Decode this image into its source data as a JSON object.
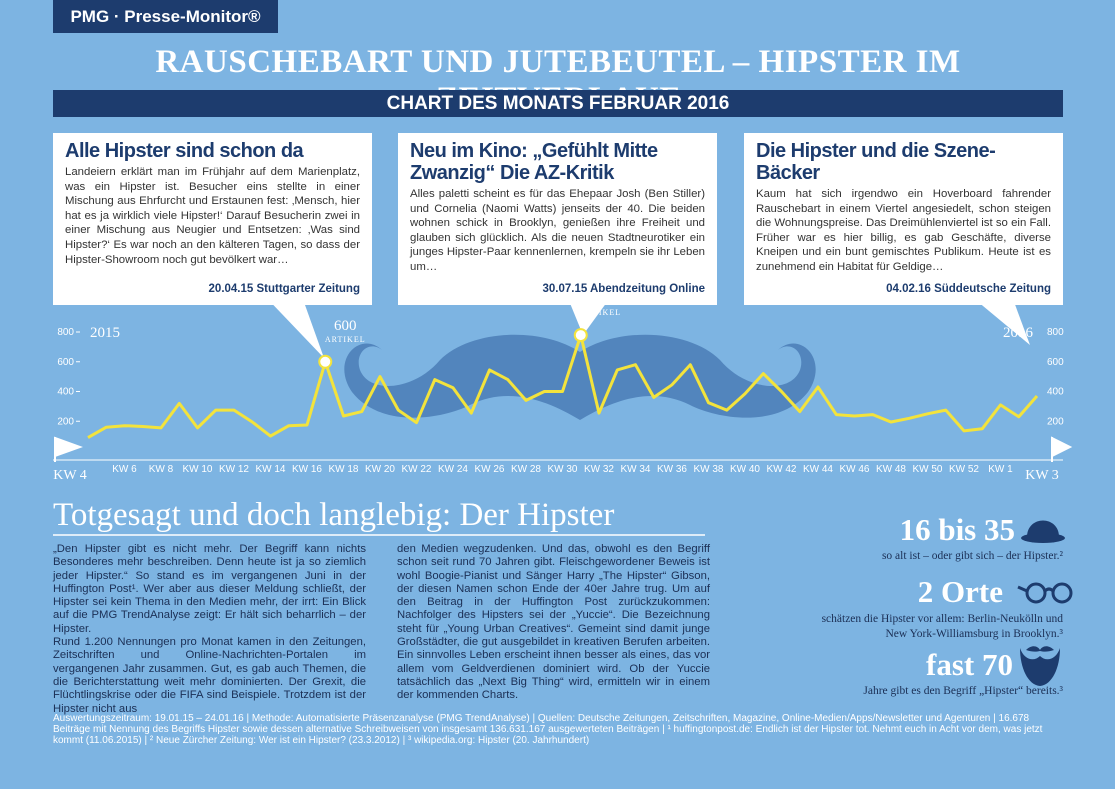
{
  "header": {
    "logo": "PMG · Presse-Monitor®",
    "title": "RAUSCHEBART UND JUTEBEUTEL – HIPSTER IM ZEITVERLAUF",
    "subtitle": "CHART DES MONATS FEBRUAR 2016"
  },
  "callouts": [
    {
      "title": "Alle Hipster sind schon da",
      "text": "Landeiern erklärt man im Frühjahr auf dem Marienplatz, was ein Hipster ist. Besucher eins stellte in einer Mischung aus Ehrfurcht und Erstaunen fest: ‚Mensch, hier hat es ja wirklich viele Hipster!‘ Darauf Besucherin zwei in einer Mischung aus Neugier und Entsetzen: ‚Was sind Hipster?‘ Es war noch an den kälteren Tagen, so dass der Hipster-Showroom noch gut bevölkert war…",
      "source": "20.04.15 Stuttgarter Zeitung"
    },
    {
      "title": "Neu im Kino: „Gefühlt Mitte Zwanzig“ Die AZ-Kritik",
      "text": "Alles paletti scheint es für das Ehepaar Josh (Ben Stiller) und Cornelia (Naomi Watts) jenseits der 40. Die beiden wohnen schick in Brooklyn, genießen ihre Freiheit und glauben sich glücklich. Als die neuen Stadtneurotiker ein junges Hipster-Paar kennenlernen, krempeln sie ihr Leben um…",
      "source": "30.07.15 Abendzeitung Online"
    },
    {
      "title": "Die Hipster und die Szene-Bäcker",
      "text": "Kaum hat sich irgendwo ein Hoverboard fahrender Rauschebart in einem Viertel angesiedelt, schon steigen die Wohnungspreise. Das Dreimühlenviertel ist so ein Fall. Früher war es hier billig, es gab Geschäfte, diverse Kneipen und ein bunt gemischtes Publikum. Heute ist es zunehmend ein Habitat für Geldige…",
      "source": "04.02.16 Süddeutsche Zeitung"
    }
  ],
  "chart_data": {
    "type": "line",
    "start_label": "2015",
    "end_label": "2016",
    "data_label_unit": "ARTIKEL",
    "categories": [
      "KW 4",
      null,
      "KW 6",
      null,
      "KW 8",
      null,
      "KW 10",
      null,
      "KW 12",
      null,
      "KW 14",
      null,
      "KW 16",
      null,
      "KW 18",
      null,
      "KW 20",
      null,
      "KW 22",
      null,
      "KW 24",
      null,
      "KW 26",
      null,
      "KW 28",
      null,
      "KW 30",
      null,
      "KW 32",
      null,
      "KW 34",
      null,
      "KW 36",
      null,
      "KW 38",
      null,
      "KW 40",
      null,
      "KW 42",
      null,
      "KW 44",
      null,
      "KW 46",
      null,
      "KW 48",
      null,
      "KW 50",
      null,
      "KW 52",
      null,
      "KW 1",
      null,
      "KW 3"
    ],
    "series": [
      {
        "color": "#f3e33c",
        "values": [
          90,
          160,
          170,
          165,
          155,
          320,
          155,
          275,
          275,
          195,
          100,
          170,
          175,
          600,
          235,
          265,
          500,
          275,
          190,
          480,
          425,
          255,
          545,
          480,
          340,
          400,
          400,
          779,
          255,
          545,
          580,
          360,
          445,
          580,
          325,
          275,
          385,
          520,
          400,
          265,
          430,
          245,
          235,
          245,
          195,
          220,
          250,
          275,
          135,
          150,
          310,
          230,
          370
        ]
      }
    ],
    "ylim": [
      0,
      800
    ],
    "yticks": [
      200,
      400,
      600,
      800
    ]
  },
  "article": {
    "title": "Totgesagt und doch langlebig: Der Hipster",
    "columns": [
      [
        "„Den Hipster gibt es nicht mehr. Der Begriff kann nichts Besonderes mehr beschreiben. Denn heute ist ja so ziemlich jeder Hipster.“ So stand es im vergangenen Juni in der Huffington Post¹. Wer aber aus dieser Meldung schließt, der Hipster sei kein Thema in den Medien mehr, der irrt: Ein Blick auf die PMG TrendAnalyse zeigt: Er hält sich beharrlich – der Hipster.",
        "Rund 1.200 Nennungen pro Monat kamen in den Zeitungen, Zeitschriften und Online-Nachrichten-Portalen im vergangenen Jahr zusammen. Gut, es gab auch Themen, die die Berichterstattung weit mehr dominierten. Der Grexit, die Flüchtlingskrise oder die FIFA sind Beispiele. Trotzdem ist der Hipster nicht aus"
      ],
      [
        "den Medien wegzudenken. Und das, obwohl es den Begriff schon seit rund 70 Jahren gibt. Fleischgewordener Beweis ist wohl Boogie-Pianist und Sänger Harry „The Hipster“ Gibson, der diesen Namen schon Ende der 40er Jahre trug. Um auf den Beitrag in der Huffington Post zurückzukommen: Nachfolger des Hipsters sei der „Yuccie“. Die Bezeichnung steht für „Young Urban Creatives“. Gemeint sind damit junge Großstädter, die gut ausgebildet in kreativen Berufen arbeiten. Ein sinnvolles Leben erscheint ihnen besser als eines, das vor allem vom Geldverdienen dominiert wird. Ob der Yuccie tatsächlich das „Next Big Thing“ wird, ermitteln wir in einem der kommenden Charts."
      ]
    ]
  },
  "facts": [
    {
      "figure": "16 bis 35",
      "text": "so alt ist – oder gibt sich – der Hipster.²"
    },
    {
      "figure": "2 Orte",
      "text": "schätzen die Hipster vor allem: Berlin-Neukölln und New York-Williamsburg in Brooklyn.³"
    },
    {
      "figure": "fast 70",
      "text": "Jahre gibt es den Begriff „Hipster“ bereits.³"
    }
  ],
  "footer": "Auswertungszeitraum: 19.01.15 – 24.01.16 | Methode: Automatisierte Präsenzanalyse (PMG TrendAnalyse) | Quellen: Deutsche Zeitungen, Zeitschriften, Magazine, Online-Medien/Apps/Newsletter und Agenturen | 16.678 Beiträge mit Nennung des Begriffs Hipster sowie dessen alternative Schreibweisen von insgesamt 136.631.167 ausgewerteten Beiträgen | ¹ huffingtonpost.de: Endlich ist der Hipster tot. Nehmt euch in Acht vor dem, was jetzt kommt (11.06.2015) | ² Neue Zürcher Zeitung: Wer ist ein Hipster? (23.3.2012) | ³ wikipedia.org: Hipster (20. Jahrhundert)"
}
